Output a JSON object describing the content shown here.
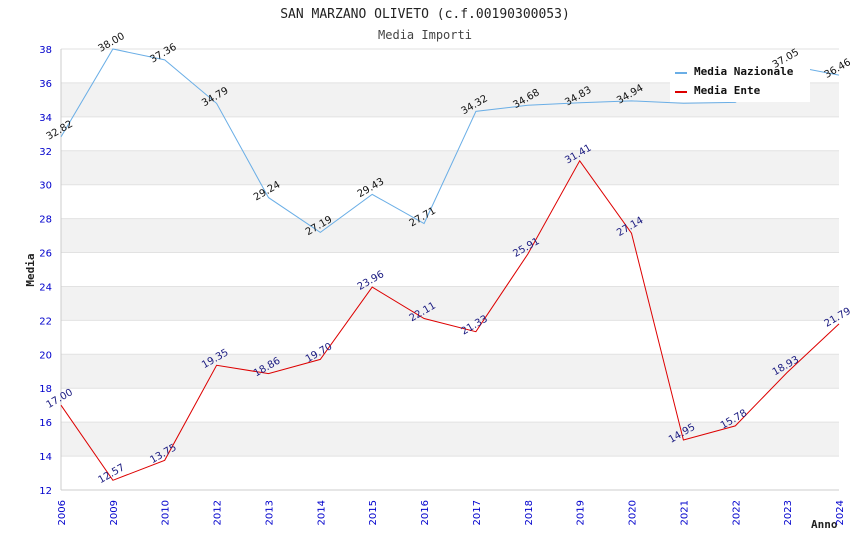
{
  "chart_data": {
    "type": "line",
    "title": "SAN MARZANO OLIVETO (c.f.00190300053)",
    "subtitle": "Media Importi",
    "xlabel": "Anno",
    "ylabel": "Media",
    "ylim": [
      12,
      38
    ],
    "yticks": [
      12,
      14,
      16,
      18,
      20,
      22,
      24,
      26,
      28,
      30,
      32,
      34,
      36,
      38
    ],
    "categories": [
      "2006",
      "2009",
      "2010",
      "2012",
      "2013",
      "2014",
      "2015",
      "2016",
      "2017",
      "2018",
      "2019",
      "2020",
      "2021",
      "2022",
      "2023",
      "2024"
    ],
    "legend_position": "top-right",
    "series": [
      {
        "name": "Media Nazionale",
        "color": "#6aaee6",
        "label_color": "#111111",
        "values": [
          32.82,
          38.0,
          37.36,
          34.79,
          29.24,
          27.19,
          29.43,
          27.71,
          34.32,
          34.68,
          34.83,
          34.94,
          34.8,
          34.85,
          37.05,
          36.46
        ],
        "labels": [
          "32.82",
          "38.00",
          "37.36",
          "34.79",
          "29.24",
          "27.19",
          "29.43",
          "27.71",
          "34.32",
          "34.68",
          "34.83",
          "34.94",
          "",
          "",
          "37.05",
          "36.46"
        ]
      },
      {
        "name": "Media Ente",
        "color": "#dd0000",
        "label_color": "#1a1a80",
        "values": [
          17.0,
          12.57,
          13.75,
          19.35,
          18.86,
          19.7,
          23.96,
          22.11,
          21.33,
          25.91,
          31.41,
          27.14,
          14.95,
          15.78,
          18.93,
          21.79
        ],
        "labels": [
          "17.00",
          "12.57",
          "13.75",
          "19.35",
          "18.86",
          "19.70",
          "23.96",
          "22.11",
          "21.33",
          "25.91",
          "31.41",
          "27.14",
          "14.95",
          "15.78",
          "18.93",
          "21.79"
        ]
      }
    ]
  }
}
